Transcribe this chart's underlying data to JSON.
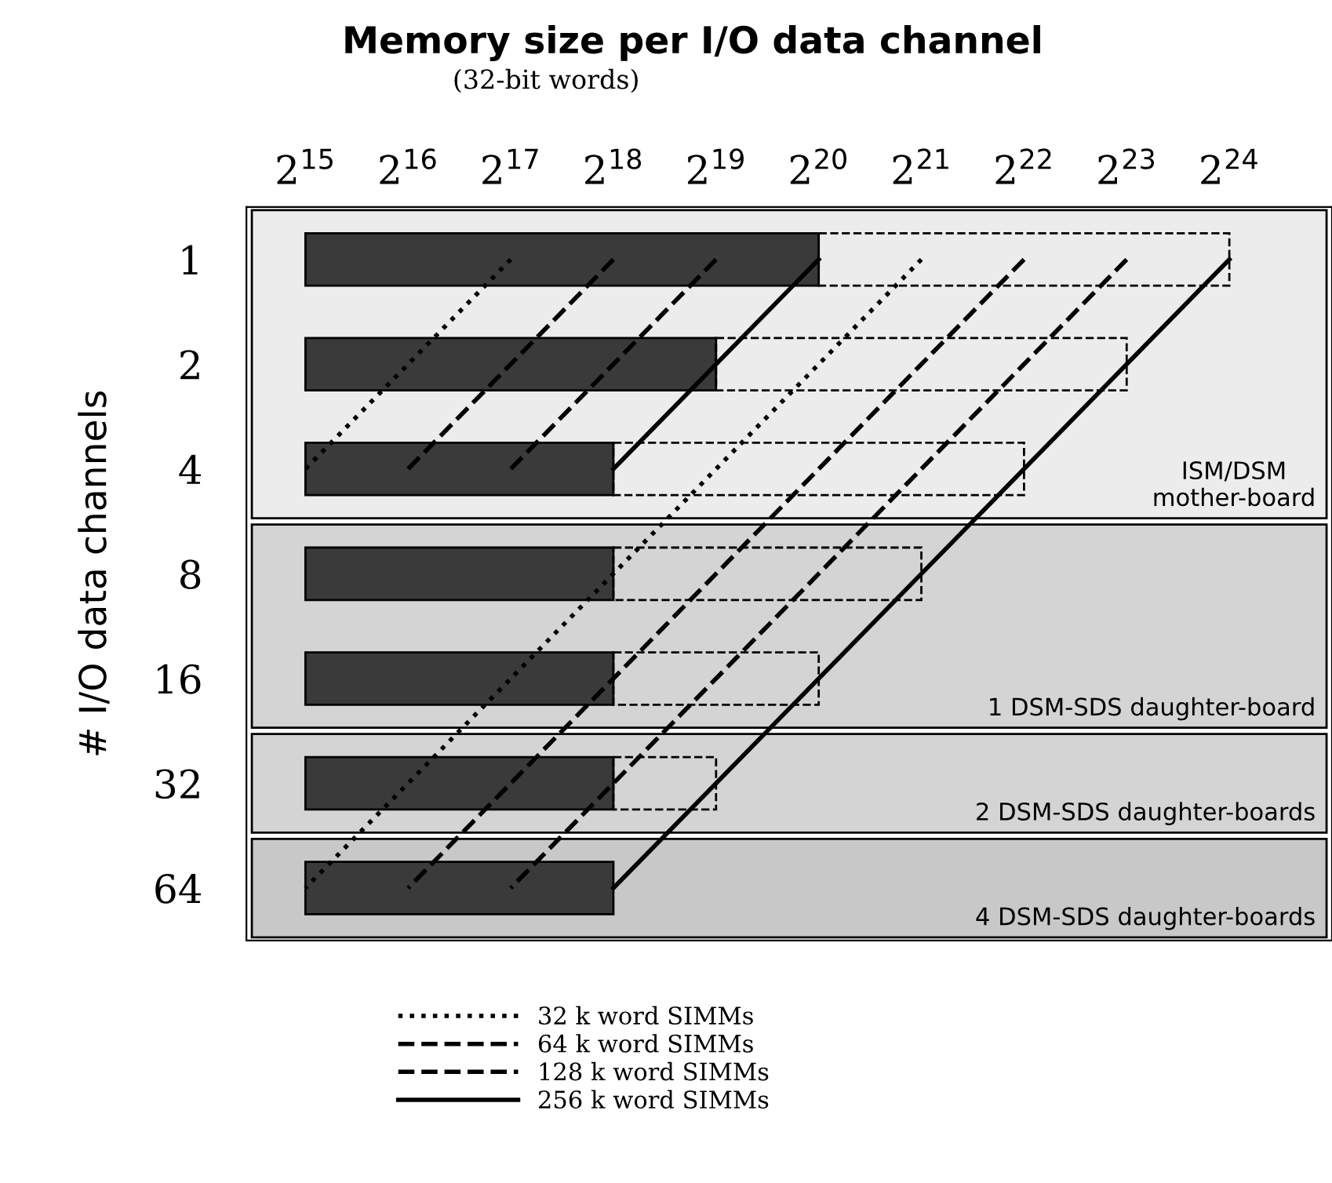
{
  "chart_data": {
    "type": "bar",
    "orientation": "horizontal",
    "title": "Memory size per I/O data channel",
    "subtitle": "(32-bit words)",
    "ylabel": "# I/O data channels",
    "categories": [
      "1",
      "2",
      "4",
      "8",
      "16",
      "32",
      "64"
    ],
    "xlim": [
      22000,
      33554432
    ],
    "log": "x",
    "xticks": [
      {
        "value": 32768,
        "label": "2$^{15}$"
      },
      {
        "value": 65536,
        "label": "2$^{16}$"
      },
      {
        "value": 131072,
        "label": "2$^{17}$"
      },
      {
        "value": 262144,
        "label": "2$^{18}$"
      },
      {
        "value": 524288,
        "label": "2$^{19}$"
      },
      {
        "value": 1048576,
        "label": "2$^{20}$"
      },
      {
        "value": 2097152,
        "label": "2$^{21}$"
      },
      {
        "value": 4194304,
        "label": "2$^{22}$"
      },
      {
        "value": 8388608,
        "label": "2$^{23}$"
      },
      {
        "value": 16777216,
        "label": "2$^{24}$"
      }
    ],
    "grid": false,
    "legend": "bottom",
    "series": [
      {
        "color": "#3a3a3a",
        "line_style": "solid",
        "base": [
          32768,
          32768,
          32768,
          32768,
          32768,
          32768,
          32768
        ],
        "values": [
          1015808,
          491520,
          229376,
          229376,
          229376,
          229376,
          229376
        ]
      },
      {
        "color": "#000000",
        "line_style": "dashed",
        "base": [
          1048576,
          524288,
          262144,
          262144,
          262144,
          262144,
          null
        ],
        "values": [
          15728640,
          7864320,
          3932160,
          1835008,
          786432,
          262144,
          null
        ]
      },
      {
        "type": "line",
        "color": "#000000",
        "line_style": "dotted",
        "values": [
          131072,
          65536,
          32768,
          null,
          null,
          null,
          null
        ]
      },
      {
        "type": "line",
        "color": "#000000",
        "line_style": "dashed",
        "values": [
          262144,
          131072,
          65536,
          null,
          null,
          null,
          null
        ]
      },
      {
        "type": "line",
        "color": "#000000",
        "line_style": "dashed",
        "values": [
          524288,
          262144,
          131072,
          null,
          null,
          null,
          null
        ]
      },
      {
        "type": "line",
        "color": "#000000",
        "line_style": "solid",
        "values": [
          1048576,
          524288,
          262144,
          null,
          null,
          null,
          null
        ]
      },
      {
        "type": "line",
        "name": "32 k word SIMMs",
        "color": "#000000",
        "line_style": "dotted",
        "values": [
          2097152,
          1048576,
          524288,
          262144,
          131072,
          65536,
          32768
        ]
      },
      {
        "type": "line",
        "name": "64 k word SIMMs",
        "color": "#000000",
        "line_style": "dashed",
        "values": [
          4194304,
          2097152,
          1048576,
          524288,
          262144,
          131072,
          65536
        ]
      },
      {
        "type": "line",
        "name": "128 k word SIMMs",
        "color": "#000000",
        "line_style": "dashed",
        "values": [
          8388608,
          4194304,
          2097152,
          1048576,
          524288,
          262144,
          131072
        ]
      },
      {
        "type": "line",
        "name": "256 k word SIMMs",
        "color": "#000000",
        "line_style": "solid",
        "values": [
          16777216,
          8388608,
          4194304,
          2097152,
          1048576,
          524288,
          262144
        ]
      }
    ],
    "bands": [
      {
        "axis": "y",
        "from": "1",
        "to": "4",
        "label": "ISM/DSM\nmother-board",
        "color": "#ececec"
      },
      {
        "axis": "y",
        "from": "8",
        "to": "16",
        "label": "1 DSM-SDS daughter-board",
        "color": "#d4d4d4"
      },
      {
        "axis": "y",
        "from": "32",
        "to": "32",
        "label": "2 DSM-SDS daughter-boards",
        "color": "#d4d4d4"
      },
      {
        "axis": "y",
        "from": "64",
        "to": "64",
        "label": "4 DSM-SDS daughter-boards",
        "color": "#c8c8c8"
      }
    ]
  }
}
